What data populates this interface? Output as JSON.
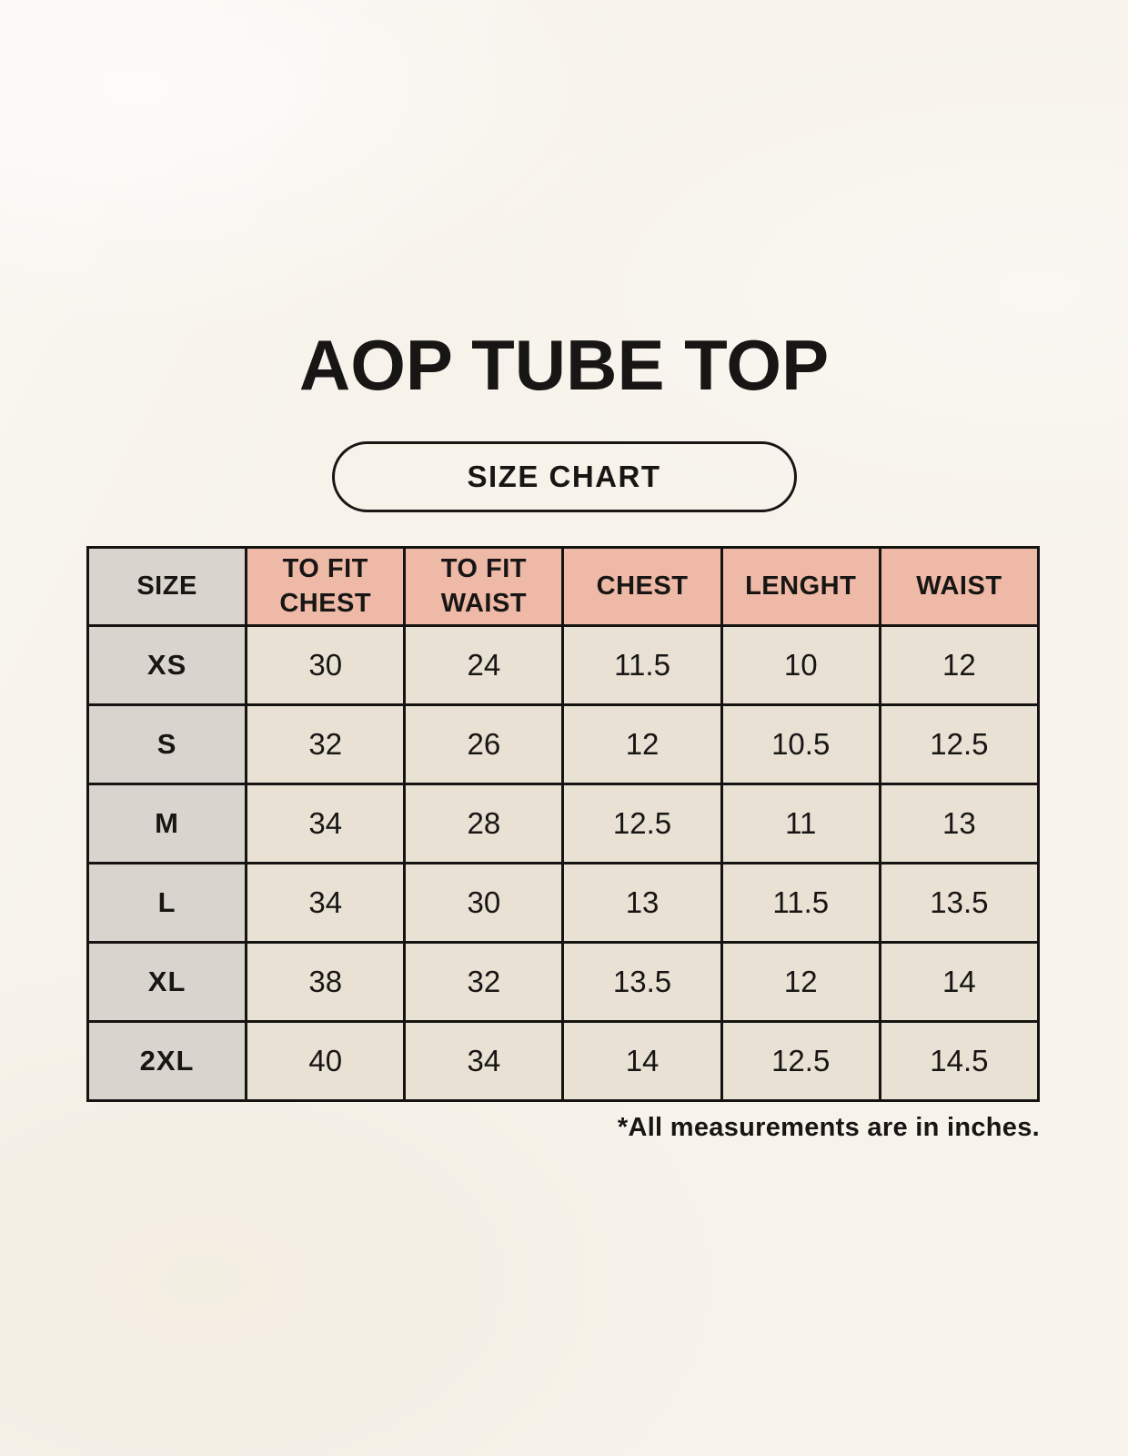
{
  "page": {
    "title": "AOP TUBE TOP",
    "size_chart_label": "SIZE CHART",
    "footnote": "*All measurements are in inches."
  },
  "colors": {
    "background": "#F7F3EB",
    "header_fill": "#EEB9A7",
    "size_column_fill": "#D9D4CD",
    "cell_fill": "#E8E1D4",
    "border": "#161412",
    "text": "#181614"
  },
  "chart_data": {
    "type": "table",
    "title": "AOP TUBE TOP",
    "columns": [
      "SIZE",
      "TO FIT CHEST",
      "TO FIT WAIST",
      "CHEST",
      "LENGHT",
      "WAIST"
    ],
    "rows": [
      [
        "XS",
        "30",
        "24",
        "11.5",
        "10",
        "12"
      ],
      [
        "S",
        "32",
        "26",
        "12",
        "10.5",
        "12.5"
      ],
      [
        "M",
        "34",
        "28",
        "12.5",
        "11",
        "13"
      ],
      [
        "L",
        "34",
        "30",
        "13",
        "11.5",
        "13.5"
      ],
      [
        "XL",
        "38",
        "32",
        "13.5",
        "12",
        "14"
      ],
      [
        "2XL",
        "40",
        "34",
        "14",
        "12.5",
        "14.5"
      ]
    ],
    "note": "*All measurements are in inches."
  }
}
